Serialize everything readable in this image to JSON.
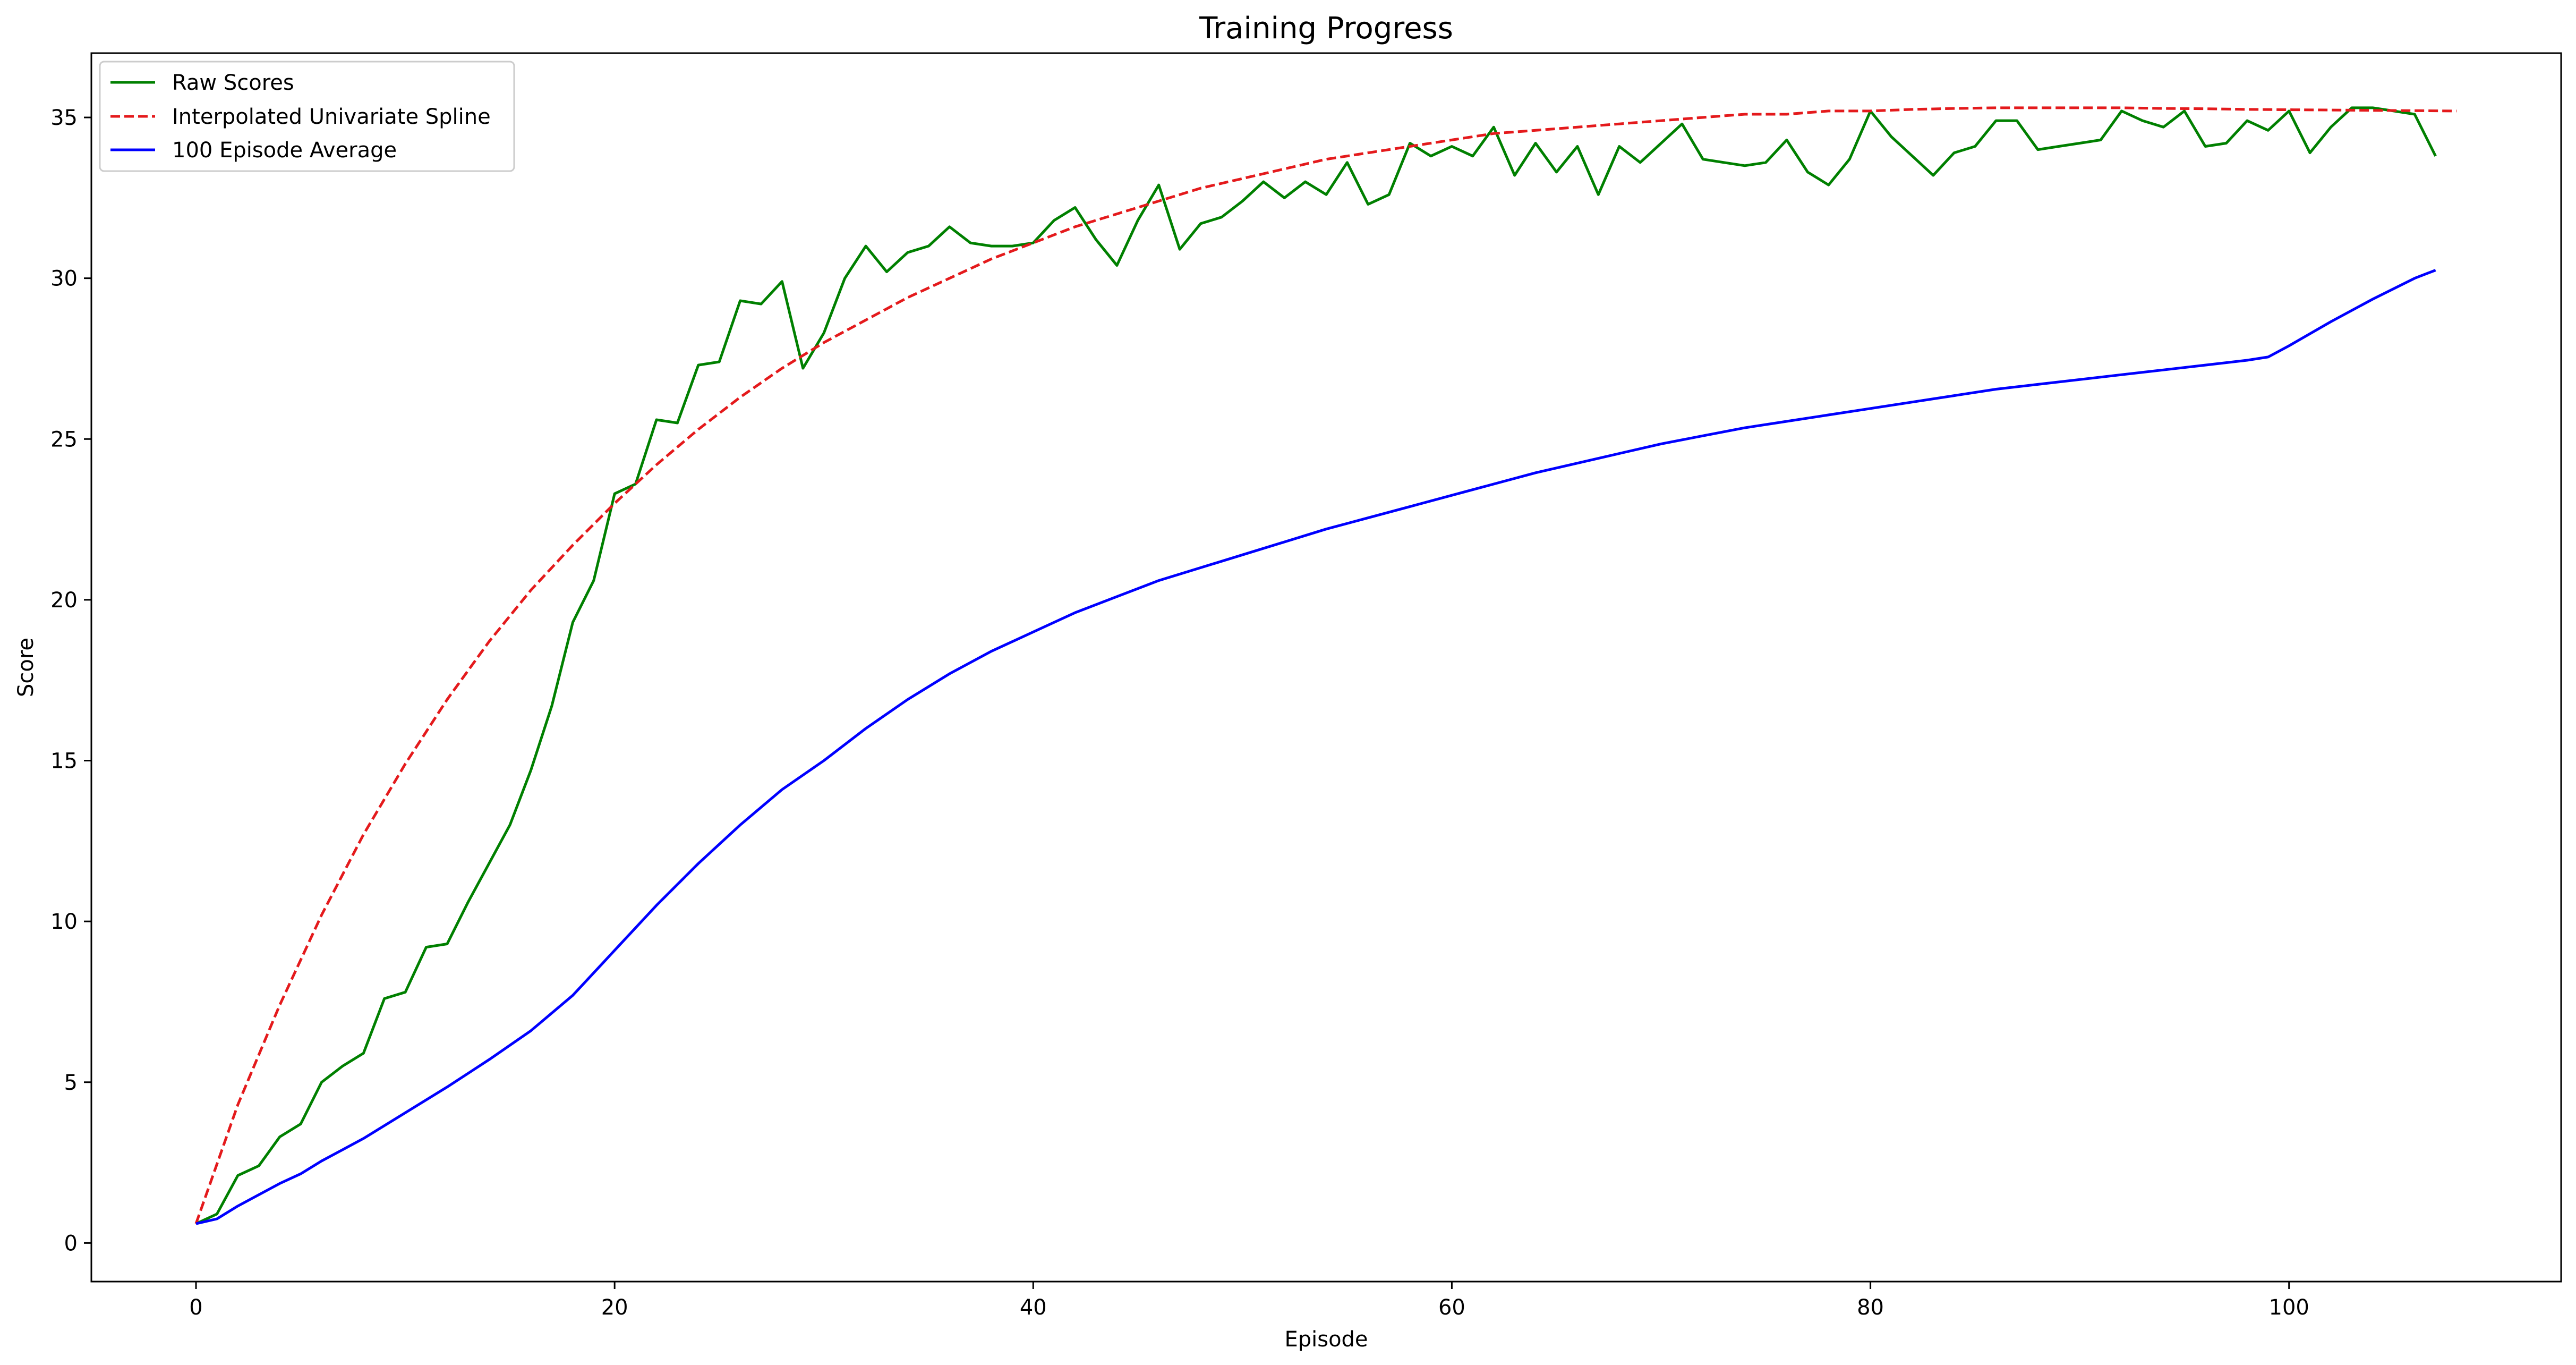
{
  "chart_data": {
    "type": "line",
    "title": "Training Progress",
    "xlabel": "Episode",
    "ylabel": "Score",
    "xlim": [
      -5,
      113
    ],
    "ylim": [
      -1.2,
      37
    ],
    "xticks": [
      0,
      20,
      40,
      60,
      80,
      100
    ],
    "yticks": [
      0,
      5,
      10,
      15,
      20,
      25,
      30,
      35
    ],
    "grid": false,
    "legend_position": "top-left",
    "series": [
      {
        "name": "Raw Scores",
        "color": "#008000",
        "style": "solid",
        "x": [
          0,
          1,
          2,
          3,
          4,
          5,
          6,
          7,
          8,
          9,
          10,
          11,
          12,
          13,
          14,
          15,
          16,
          17,
          18,
          19,
          20,
          21,
          22,
          23,
          24,
          25,
          26,
          27,
          28,
          29,
          30,
          31,
          32,
          33,
          34,
          35,
          36,
          37,
          38,
          39,
          40,
          41,
          42,
          43,
          44,
          45,
          46,
          47,
          48,
          49,
          50,
          51,
          52,
          53,
          54,
          55,
          56,
          57,
          58,
          59,
          60,
          61,
          62,
          63,
          64,
          65,
          66,
          67,
          68,
          69,
          70,
          71,
          72,
          73,
          74,
          75,
          76,
          77,
          78,
          79,
          80,
          81,
          82,
          83,
          84,
          85,
          86,
          87,
          88,
          89,
          90,
          91,
          92,
          93,
          94,
          95,
          96,
          97,
          98,
          99,
          100,
          101,
          102,
          103,
          104,
          105,
          106,
          107
        ],
        "y": [
          0.6,
          0.9,
          2.1,
          2.4,
          3.3,
          3.7,
          5.0,
          5.5,
          5.9,
          7.6,
          7.8,
          9.2,
          9.3,
          10.6,
          11.8,
          13.0,
          14.7,
          16.7,
          19.3,
          20.6,
          23.3,
          23.6,
          25.6,
          25.5,
          27.3,
          27.4,
          29.3,
          29.2,
          29.9,
          27.2,
          28.3,
          30.0,
          31.0,
          30.2,
          30.8,
          31.0,
          31.6,
          31.1,
          31.0,
          31.0,
          31.1,
          31.8,
          32.2,
          31.2,
          30.4,
          31.8,
          32.9,
          30.9,
          31.7,
          31.9,
          32.4,
          33.0,
          32.5,
          33.0,
          32.6,
          33.6,
          32.3,
          32.6,
          34.2,
          33.8,
          34.1,
          33.8,
          34.7,
          33.2,
          34.2,
          33.3,
          34.1,
          32.6,
          34.1,
          33.6,
          34.2,
          34.8,
          33.7,
          33.6,
          33.5,
          33.6,
          34.3,
          33.3,
          32.9,
          33.7,
          35.2,
          34.4,
          33.8,
          33.2,
          33.9,
          34.1,
          34.9,
          34.9,
          34.0,
          34.1,
          34.2,
          34.3,
          35.2,
          34.9,
          34.7,
          35.2,
          34.1,
          34.2,
          34.9,
          34.6,
          35.2,
          33.9,
          34.7,
          35.3,
          35.3,
          35.2,
          35.1,
          33.8
        ]
      },
      {
        "name": "Interpolated Univariate Spline",
        "color": "#e41a1c",
        "style": "dashed",
        "x": [
          0,
          2,
          4,
          6,
          8,
          10,
          12,
          14,
          16,
          18,
          20,
          22,
          24,
          26,
          28,
          30,
          32,
          34,
          36,
          38,
          40,
          42,
          44,
          46,
          48,
          50,
          52,
          54,
          56,
          58,
          60,
          62,
          64,
          66,
          68,
          70,
          72,
          74,
          76,
          78,
          80,
          82,
          84,
          86,
          88,
          90,
          92,
          94,
          96,
          98,
          100,
          102,
          104,
          106,
          108
        ],
        "y": [
          0.6,
          4.3,
          7.4,
          10.2,
          12.7,
          14.9,
          16.9,
          18.7,
          20.3,
          21.7,
          23.0,
          24.2,
          25.3,
          26.3,
          27.2,
          28.0,
          28.7,
          29.4,
          30.0,
          30.6,
          31.1,
          31.6,
          32.0,
          32.4,
          32.8,
          33.1,
          33.4,
          33.7,
          33.9,
          34.1,
          34.3,
          34.5,
          34.6,
          34.7,
          34.8,
          34.9,
          35.0,
          35.1,
          35.1,
          35.2,
          35.2,
          35.25,
          35.28,
          35.3,
          35.3,
          35.3,
          35.3,
          35.28,
          35.27,
          35.25,
          35.24,
          35.23,
          35.22,
          35.21,
          35.2
        ]
      },
      {
        "name": "100 Episode Average",
        "color": "#0000ff",
        "style": "solid",
        "x": [
          0,
          1,
          2,
          3,
          4,
          5,
          6,
          7,
          8,
          9,
          10,
          12,
          14,
          16,
          18,
          20,
          22,
          24,
          26,
          28,
          30,
          32,
          34,
          36,
          38,
          40,
          42,
          44,
          46,
          48,
          50,
          52,
          54,
          56,
          58,
          60,
          62,
          64,
          66,
          68,
          70,
          72,
          74,
          76,
          78,
          80,
          82,
          84,
          86,
          88,
          90,
          92,
          94,
          96,
          98,
          99,
          100,
          102,
          104,
          106,
          107
        ],
        "y": [
          0.6,
          0.75,
          1.15,
          1.5,
          1.85,
          2.15,
          2.55,
          2.9,
          3.25,
          3.65,
          4.05,
          4.85,
          5.7,
          6.6,
          7.7,
          9.1,
          10.5,
          11.8,
          13.0,
          14.1,
          15.0,
          16.0,
          16.9,
          17.7,
          18.4,
          19.0,
          19.6,
          20.1,
          20.6,
          21.0,
          21.4,
          21.8,
          22.2,
          22.55,
          22.9,
          23.25,
          23.6,
          23.95,
          24.25,
          24.55,
          24.85,
          25.1,
          25.35,
          25.55,
          25.75,
          25.95,
          26.15,
          26.35,
          26.55,
          26.7,
          26.85,
          27.0,
          27.15,
          27.3,
          27.45,
          27.55,
          27.9,
          28.65,
          29.35,
          30.0,
          30.25
        ]
      }
    ]
  }
}
